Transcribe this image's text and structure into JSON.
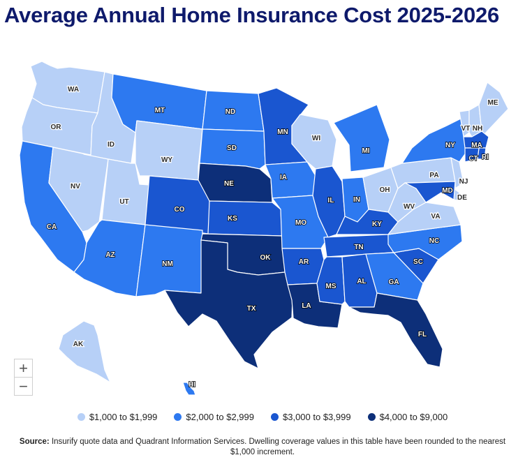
{
  "title": "Average Annual Home Insurance Cost 2025-2026",
  "colors": {
    "tier1": "#b7d0f7",
    "tier2": "#2d79f0",
    "tier3": "#1a56d0",
    "tier4": "#0d2f79",
    "border": "#ffffff"
  },
  "zoom": {
    "in_label": "+",
    "out_label": "−"
  },
  "legend": [
    {
      "label": "$1,000 to $1,999",
      "tier": "tier1"
    },
    {
      "label": "$2,000 to $2,999",
      "tier": "tier2"
    },
    {
      "label": "$3,000 to $3,999",
      "tier": "tier3"
    },
    {
      "label": "$4,000 to $9,000",
      "tier": "tier4"
    }
  ],
  "source": {
    "label": "Source:",
    "text": "Insurify quote data and Quadrant Information Services. Dwelling coverage values in this table have been rounded to the nearest $1,000 increment."
  },
  "states": [
    {
      "abbr": "WA",
      "tier": "tier1"
    },
    {
      "abbr": "OR",
      "tier": "tier1"
    },
    {
      "abbr": "CA",
      "tier": "tier2"
    },
    {
      "abbr": "NV",
      "tier": "tier1"
    },
    {
      "abbr": "ID",
      "tier": "tier1"
    },
    {
      "abbr": "UT",
      "tier": "tier1"
    },
    {
      "abbr": "AZ",
      "tier": "tier2"
    },
    {
      "abbr": "MT",
      "tier": "tier2"
    },
    {
      "abbr": "WY",
      "tier": "tier1"
    },
    {
      "abbr": "CO",
      "tier": "tier3"
    },
    {
      "abbr": "NM",
      "tier": "tier2"
    },
    {
      "abbr": "ND",
      "tier": "tier2"
    },
    {
      "abbr": "SD",
      "tier": "tier2"
    },
    {
      "abbr": "NE",
      "tier": "tier4"
    },
    {
      "abbr": "KS",
      "tier": "tier3"
    },
    {
      "abbr": "OK",
      "tier": "tier4"
    },
    {
      "abbr": "TX",
      "tier": "tier4"
    },
    {
      "abbr": "MN",
      "tier": "tier3"
    },
    {
      "abbr": "IA",
      "tier": "tier2"
    },
    {
      "abbr": "MO",
      "tier": "tier2"
    },
    {
      "abbr": "AR",
      "tier": "tier3"
    },
    {
      "abbr": "LA",
      "tier": "tier4"
    },
    {
      "abbr": "WI",
      "tier": "tier1"
    },
    {
      "abbr": "IL",
      "tier": "tier3"
    },
    {
      "abbr": "MI",
      "tier": "tier2"
    },
    {
      "abbr": "IN",
      "tier": "tier2"
    },
    {
      "abbr": "OH",
      "tier": "tier1"
    },
    {
      "abbr": "KY",
      "tier": "tier3"
    },
    {
      "abbr": "TN",
      "tier": "tier3"
    },
    {
      "abbr": "MS",
      "tier": "tier3"
    },
    {
      "abbr": "AL",
      "tier": "tier3"
    },
    {
      "abbr": "GA",
      "tier": "tier2"
    },
    {
      "abbr": "FL",
      "tier": "tier4"
    },
    {
      "abbr": "SC",
      "tier": "tier3"
    },
    {
      "abbr": "NC",
      "tier": "tier2"
    },
    {
      "abbr": "VA",
      "tier": "tier1"
    },
    {
      "abbr": "WV",
      "tier": "tier1"
    },
    {
      "abbr": "PA",
      "tier": "tier1"
    },
    {
      "abbr": "NY",
      "tier": "tier2"
    },
    {
      "abbr": "VT",
      "tier": "tier1"
    },
    {
      "abbr": "NH",
      "tier": "tier1"
    },
    {
      "abbr": "ME",
      "tier": "tier1"
    },
    {
      "abbr": "MA",
      "tier": "tier3"
    },
    {
      "abbr": "RI",
      "tier": "tier3"
    },
    {
      "abbr": "CT",
      "tier": "tier3"
    },
    {
      "abbr": "NJ",
      "tier": "tier1"
    },
    {
      "abbr": "DE",
      "tier": "tier1"
    },
    {
      "abbr": "MD",
      "tier": "tier3"
    },
    {
      "abbr": "AK",
      "tier": "tier1"
    },
    {
      "abbr": "HI",
      "tier": "tier2"
    }
  ]
}
